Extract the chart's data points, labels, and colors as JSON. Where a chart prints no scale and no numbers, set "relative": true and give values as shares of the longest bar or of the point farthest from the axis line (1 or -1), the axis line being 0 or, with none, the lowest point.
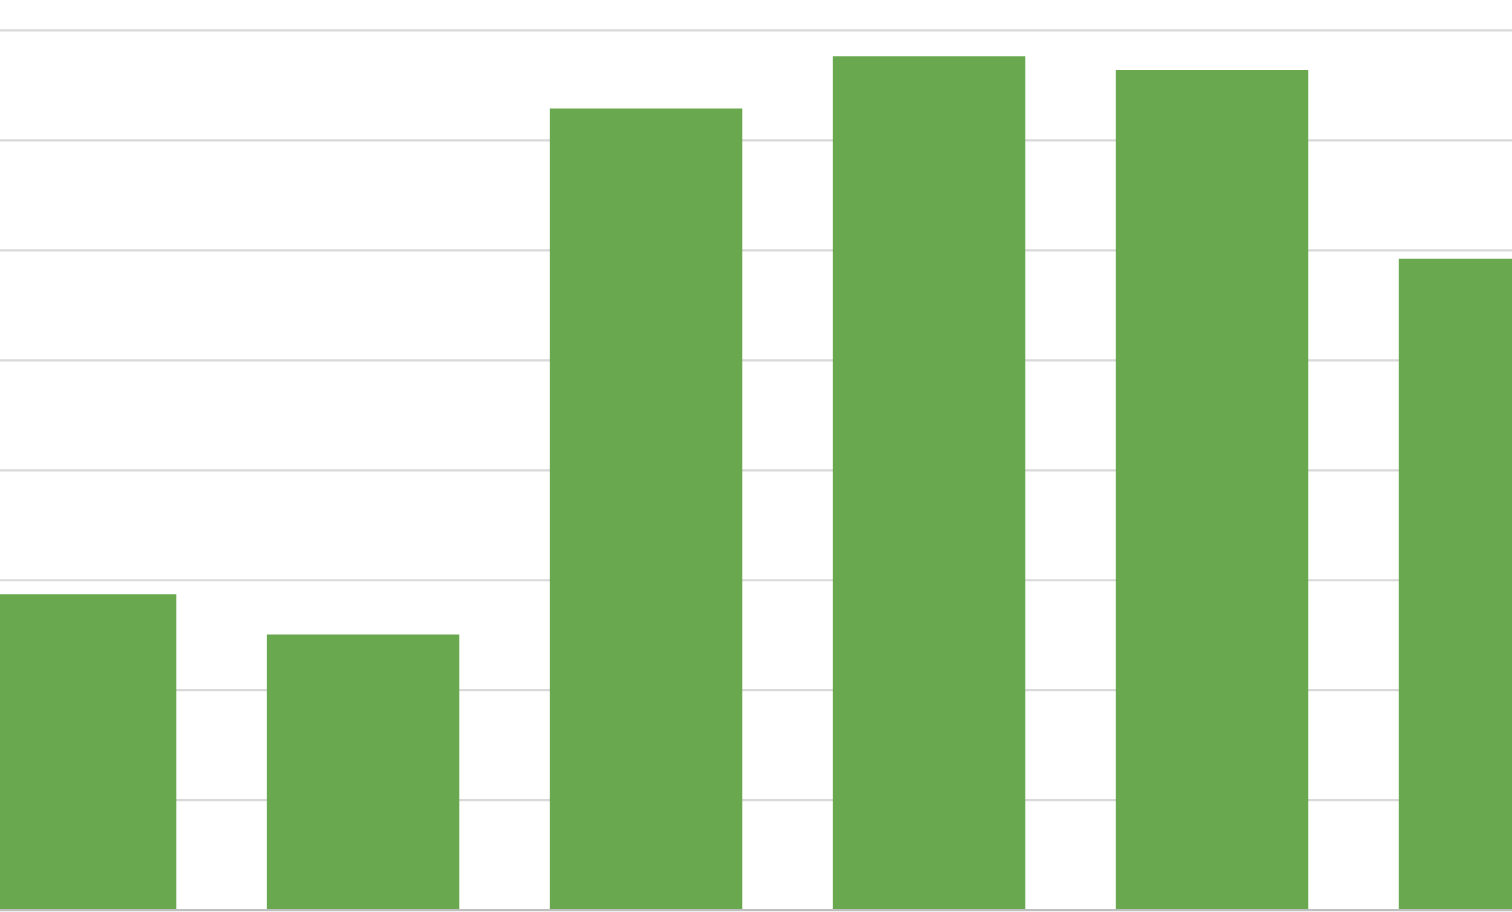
{
  "chart_data": {
    "type": "bar",
    "relative": true,
    "categories": [
      null,
      null,
      null,
      null,
      null,
      null
    ],
    "values": [
      0.37,
      0.323,
      0.939,
      1,
      0.984,
      0.763
    ],
    "color": "#6aa84f",
    "grid": "y"
  }
}
